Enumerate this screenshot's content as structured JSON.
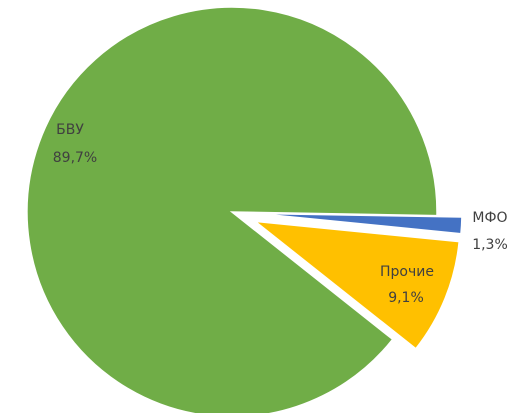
{
  "chart_data": {
    "type": "pie",
    "categories": [
      "МФО",
      "Прочие",
      "БВУ"
    ],
    "values": [
      1.3,
      9.1,
      89.7
    ],
    "value_labels": [
      "1,3%",
      "9,1%",
      "89,7%"
    ],
    "colors": [
      "#4472c4",
      "#ffc000",
      "#70ad47"
    ]
  }
}
